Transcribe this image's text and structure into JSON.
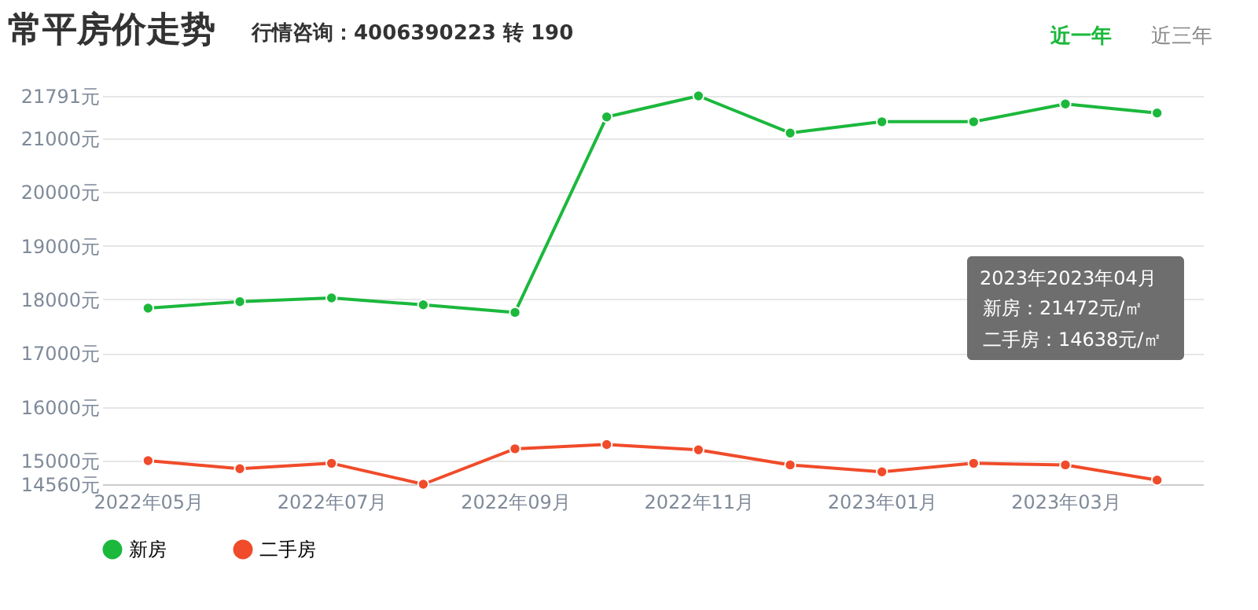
{
  "chart_data": {
    "type": "line",
    "title": "常平房价走势",
    "subtitle": "行情咨询：4006390223 转 190",
    "categories": [
      "2022年05月",
      null,
      "2022年07月",
      null,
      "2022年09月",
      null,
      "2022年11月",
      null,
      "2023年01月",
      null,
      "2023年03月",
      null
    ],
    "series": [
      {
        "name": "新房",
        "color": "#1bb83c",
        "values": [
          17840,
          17960,
          18030,
          17900,
          17760,
          21400,
          21791,
          21100,
          21310,
          21310,
          21640,
          21472
        ]
      },
      {
        "name": "二手房",
        "color": "#f04b2a",
        "values": [
          15000,
          14850,
          14950,
          14560,
          15220,
          15300,
          15200,
          14920,
          14790,
          14950,
          14920,
          14638
        ]
      }
    ],
    "ylim": [
      14560,
      21791
    ],
    "yticks": [
      {
        "value": 14560,
        "label": "14560元"
      },
      {
        "value": 15000,
        "label": "15000元"
      },
      {
        "value": 16000,
        "label": "16000元"
      },
      {
        "value": 17000,
        "label": "17000元"
      },
      {
        "value": 18000,
        "label": "18000元"
      },
      {
        "value": 19000,
        "label": "19000元"
      },
      {
        "value": 20000,
        "label": "20000元"
      },
      {
        "value": 21000,
        "label": "21000元"
      },
      {
        "value": 21791,
        "label": "21791元"
      }
    ],
    "grid": "y",
    "legend": "bottom",
    "marker": "circle",
    "line_style": "solid",
    "annotations": [
      "近一年",
      "近三年",
      "2023年2023年04月",
      "新房：21472元/㎡",
      "二手房：14638元/㎡"
    ]
  }
}
